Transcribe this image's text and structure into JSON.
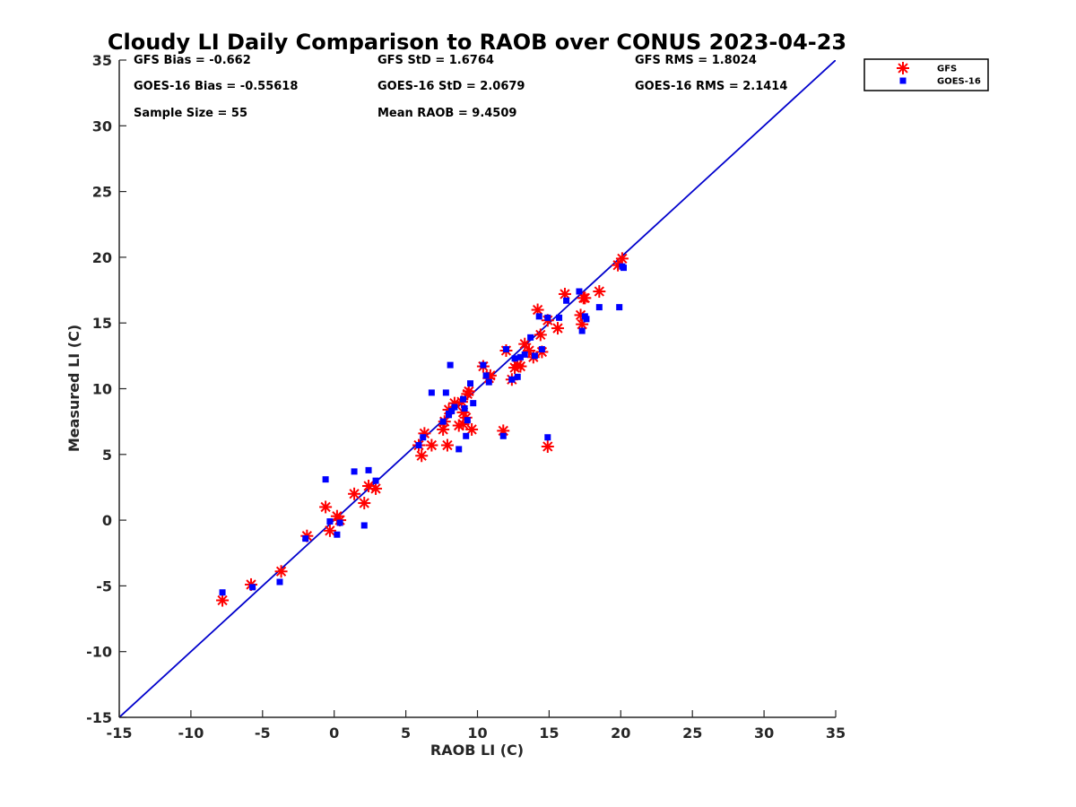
{
  "chart_data": {
    "type": "scatter",
    "title": "Cloudy LI Daily Comparison to RAOB over CONUS 2023-04-23",
    "xlabel": "RAOB LI (C)",
    "ylabel": "Measured LI (C)",
    "xlim": [
      -15,
      35
    ],
    "ylim": [
      -15,
      35
    ],
    "xticks": [
      -15,
      -10,
      -5,
      0,
      5,
      10,
      15,
      20,
      25,
      30,
      35
    ],
    "yticks": [
      -15,
      -10,
      -5,
      0,
      5,
      10,
      15,
      20,
      25,
      30,
      35
    ],
    "grid": false,
    "legend_position": "outside-top-right",
    "reference_line": {
      "type": "one-to-one",
      "color": "#0000cc"
    },
    "stats": [
      [
        "GFS Bias = -0.662",
        "GFS StD = 1.6764",
        "GFS RMS = 1.8024"
      ],
      [
        "GOES-16 Bias = -0.55618",
        "GOES-16 StD = 2.0679",
        "GOES-16 RMS = 2.1414"
      ],
      [
        "Sample Size = 55",
        "Mean RAOB = 9.4509",
        ""
      ]
    ],
    "series": [
      {
        "name": "GFS",
        "marker": "asterisk",
        "color": "#ff0000",
        "x": [
          -7.8,
          -5.8,
          -3.7,
          -1.9,
          -0.6,
          -0.3,
          0.2,
          0.4,
          1.4,
          2.1,
          2.4,
          2.9,
          5.9,
          6.1,
          6.3,
          6.8,
          7.6,
          7.9,
          8.0,
          8.4,
          8.7,
          9.0,
          9.2,
          9.4,
          9.6,
          10.4,
          10.8,
          11.8,
          12.0,
          12.4,
          12.8,
          13.0,
          13.3,
          13.6,
          14.2,
          14.4,
          14.5,
          14.9,
          15.6,
          16.1,
          17.2,
          17.5,
          17.3,
          18.5,
          19.8,
          20.1,
          14.9,
          9.0,
          8.9,
          9.3,
          12.6,
          13.9,
          17.4,
          10.9,
          7.7
        ],
        "y": [
          -6.1,
          -4.9,
          -3.9,
          -1.2,
          1.0,
          -0.8,
          0.3,
          0.0,
          2.0,
          1.3,
          2.6,
          2.4,
          5.7,
          4.9,
          6.6,
          5.7,
          6.9,
          5.7,
          8.4,
          8.9,
          7.2,
          7.3,
          7.8,
          9.8,
          6.9,
          11.7,
          10.8,
          6.8,
          12.9,
          10.7,
          11.8,
          11.7,
          13.4,
          12.9,
          16.0,
          14.1,
          12.8,
          15.2,
          14.6,
          17.2,
          15.6,
          16.9,
          14.9,
          17.4,
          19.4,
          19.9,
          5.6,
          8.2,
          9.0,
          9.6,
          11.6,
          12.4,
          16.9,
          11.0,
          7.5
        ]
      },
      {
        "name": "GOES-16",
        "marker": "square",
        "color": "#0000ff",
        "x": [
          -7.8,
          -5.7,
          -3.8,
          -2.0,
          -0.6,
          -0.3,
          0.2,
          0.4,
          1.4,
          2.1,
          2.4,
          2.9,
          5.9,
          6.2,
          6.8,
          7.6,
          7.8,
          8.0,
          8.1,
          8.4,
          8.7,
          9.0,
          9.2,
          9.3,
          9.5,
          9.7,
          10.4,
          10.6,
          10.8,
          11.8,
          12.0,
          12.4,
          12.8,
          13.0,
          13.3,
          13.7,
          14.0,
          14.3,
          14.5,
          14.9,
          15.7,
          16.2,
          17.1,
          17.3,
          17.5,
          17.6,
          18.5,
          19.9,
          20.1,
          20.2,
          14.9,
          9.1,
          8.2,
          12.6,
          8.0
        ],
        "y": [
          -5.5,
          -5.1,
          -4.7,
          -1.4,
          3.1,
          -0.1,
          -1.1,
          -0.2,
          3.7,
          -0.4,
          3.8,
          3.0,
          5.7,
          6.3,
          9.7,
          7.5,
          9.7,
          8.0,
          11.8,
          8.6,
          5.4,
          9.2,
          6.4,
          7.6,
          10.4,
          8.9,
          11.8,
          11.0,
          10.5,
          6.4,
          13.0,
          10.7,
          10.9,
          12.4,
          12.6,
          13.9,
          12.5,
          15.5,
          13.0,
          15.4,
          15.4,
          16.7,
          17.4,
          14.4,
          15.5,
          15.3,
          16.2,
          16.2,
          19.3,
          19.2,
          6.3,
          8.5,
          8.3,
          12.3,
          8.1
        ]
      }
    ]
  }
}
